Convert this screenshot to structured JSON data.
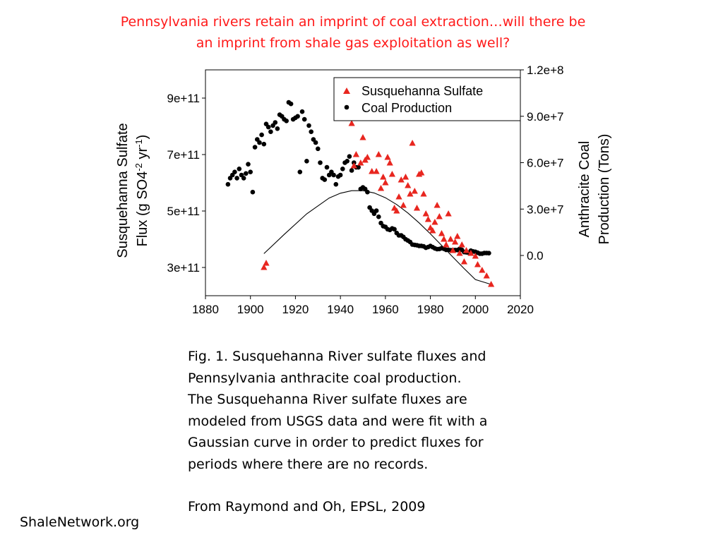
{
  "slide": {
    "title_line1": "Pennsylvania rivers retain an imprint of coal extraction…will there be",
    "title_line2": "an imprint from shale gas exploitation as well?",
    "caption": [
      "Fig. 1. Susquehanna River sulfate fluxes and",
      "Pennsylvania anthracite coal production.",
      "The Susquehanna River sulfate fluxes are",
      "modeled from USGS data and were fit with a",
      "Gaussian curve in order to predict fluxes for",
      "periods where there are no records."
    ],
    "source": "From Raymond and Oh, EPSL, 2009",
    "footer": "ShaleNetwork.org"
  },
  "chart_data": {
    "type": "scatter",
    "xlim": [
      1880,
      2020
    ],
    "x_ticks": [
      "1880",
      "1900",
      "1920",
      "1940",
      "1960",
      "1980",
      "2000",
      "2020"
    ],
    "ylabel_left": "Susquehanna Sulfate Flux (g SO4-2 yr-1)",
    "ylim_left": [
      200000000000.0,
      1000000000000.0
    ],
    "y_ticks_left": [
      "3e+11",
      "5e+11",
      "7e+11",
      "9e+11"
    ],
    "ylabel_right": "Anthracite Coal Production (Tons)",
    "ylim_right": [
      -26000000.0,
      120000000.0
    ],
    "y_ticks_right": [
      "0.0",
      "3.0e+7",
      "6.0e+7",
      "9.0e+7",
      "1.2e+8"
    ],
    "legend_position": "top-right",
    "colors": {
      "sulfate": "#e8261f",
      "coal": "#000000",
      "fit": "#000000"
    },
    "series": [
      {
        "name": "Susquehanna Sulfate",
        "marker": "triangle",
        "axis": "left",
        "points": [
          [
            1906,
            300000000000.0
          ],
          [
            1907,
            315000000000.0
          ],
          [
            1945,
            810000000000.0
          ],
          [
            1946,
            660000000000.0
          ],
          [
            1947,
            700000000000.0
          ],
          [
            1949,
            670000000000.0
          ],
          [
            1950,
            760000000000.0
          ],
          [
            1951,
            680000000000.0
          ],
          [
            1952,
            690000000000.0
          ],
          [
            1954,
            640000000000.0
          ],
          [
            1956,
            640000000000.0
          ],
          [
            1957,
            700000000000.0
          ],
          [
            1958,
            580000000000.0
          ],
          [
            1959,
            620000000000.0
          ],
          [
            1960,
            600000000000.0
          ],
          [
            1961,
            690000000000.0
          ],
          [
            1962,
            670000000000.0
          ],
          [
            1963,
            630000000000.0
          ],
          [
            1964,
            510000000000.0
          ],
          [
            1965,
            500000000000.0
          ],
          [
            1966,
            550000000000.0
          ],
          [
            1967,
            610000000000.0
          ],
          [
            1968,
            520000000000.0
          ],
          [
            1969,
            620000000000.0
          ],
          [
            1970,
            590000000000.0
          ],
          [
            1971,
            560000000000.0
          ],
          [
            1972,
            740000000000.0
          ],
          [
            1973,
            570000000000.0
          ],
          [
            1974,
            510000000000.0
          ],
          [
            1975,
            630000000000.0
          ],
          [
            1976,
            635000000000.0
          ],
          [
            1977,
            560000000000.0
          ],
          [
            1978,
            490000000000.0
          ],
          [
            1979,
            470000000000.0
          ],
          [
            1980,
            440000000000.0
          ],
          [
            1981,
            430000000000.0
          ],
          [
            1982,
            460000000000.0
          ],
          [
            1983,
            520000000000.0
          ],
          [
            1984,
            480000000000.0
          ],
          [
            1985,
            420000000000.0
          ],
          [
            1986,
            400000000000.0
          ],
          [
            1987,
            380000000000.0
          ],
          [
            1988,
            490000000000.0
          ],
          [
            1989,
            400000000000.0
          ],
          [
            1990,
            360000000000.0
          ],
          [
            1991,
            390000000000.0
          ],
          [
            1992,
            410000000000.0
          ],
          [
            1993,
            350000000000.0
          ],
          [
            1994,
            380000000000.0
          ],
          [
            1995,
            320000000000.0
          ],
          [
            1996,
            360000000000.0
          ],
          [
            1998,
            350000000000.0
          ],
          [
            2000,
            340000000000.0
          ],
          [
            2001,
            310000000000.0
          ],
          [
            2003,
            290000000000.0
          ],
          [
            2005,
            270000000000.0
          ],
          [
            2007,
            240000000000.0
          ]
        ]
      },
      {
        "name": "Coal Production",
        "marker": "circle",
        "axis": "right",
        "points": [
          [
            1890,
            46000000.0
          ],
          [
            1891,
            50000000.0
          ],
          [
            1892,
            52000000.0
          ],
          [
            1893,
            54000000.0
          ],
          [
            1894,
            50000000.0
          ],
          [
            1895,
            56000000.0
          ],
          [
            1896,
            52000000.0
          ],
          [
            1897,
            50000000.0
          ],
          [
            1898,
            53000000.0
          ],
          [
            1899,
            59000000.0
          ],
          [
            1900,
            54000000.0
          ],
          [
            1901,
            41000000.0
          ],
          [
            1902,
            70000000.0
          ],
          [
            1903,
            75000000.0
          ],
          [
            1904,
            73000000.0
          ],
          [
            1905,
            78000000.0
          ],
          [
            1906,
            72000000.0
          ],
          [
            1907,
            85000000.0
          ],
          [
            1908,
            83000000.0
          ],
          [
            1909,
            80000000.0
          ],
          [
            1910,
            84000000.0
          ],
          [
            1911,
            86000000.0
          ],
          [
            1912,
            82000000.0
          ],
          [
            1913,
            91000000.0
          ],
          [
            1914,
            90000000.0
          ],
          [
            1915,
            88000000.0
          ],
          [
            1916,
            87000000.0
          ],
          [
            1917,
            99000000.0
          ],
          [
            1918,
            98000000.0
          ],
          [
            1919,
            88000000.0
          ],
          [
            1920,
            89000000.0
          ],
          [
            1921,
            90000000.0
          ],
          [
            1922,
            54000000.0
          ],
          [
            1923,
            93000000.0
          ],
          [
            1924,
            88000000.0
          ],
          [
            1925,
            61000000.0
          ],
          [
            1926,
            84000000.0
          ],
          [
            1927,
            80000000.0
          ],
          [
            1928,
            75000000.0
          ],
          [
            1929,
            73000000.0
          ],
          [
            1930,
            69000000.0
          ],
          [
            1931,
            60000000.0
          ],
          [
            1932,
            50000000.0
          ],
          [
            1933,
            49000000.0
          ],
          [
            1934,
            57000000.0
          ],
          [
            1935,
            52000000.0
          ],
          [
            1936,
            54000000.0
          ],
          [
            1937,
            52000000.0
          ],
          [
            1938,
            46000000.0
          ],
          [
            1939,
            51000000.0
          ],
          [
            1940,
            52000000.0
          ],
          [
            1941,
            56000000.0
          ],
          [
            1942,
            60000000.0
          ],
          [
            1943,
            61000000.0
          ],
          [
            1944,
            64000000.0
          ],
          [
            1945,
            55000000.0
          ],
          [
            1946,
            60000000.0
          ],
          [
            1947,
            57000000.0
          ],
          [
            1948,
            57000000.0
          ],
          [
            1949,
            43000000.0
          ],
          [
            1950,
            44000000.0
          ],
          [
            1951,
            43000000.0
          ],
          [
            1952,
            41000000.0
          ],
          [
            1953,
            31000000.0
          ],
          [
            1954,
            29000000.0
          ],
          [
            1955,
            27000000.0
          ],
          [
            1956,
            29000000.0
          ],
          [
            1957,
            25000000.0
          ],
          [
            1958,
            21000000.0
          ],
          [
            1959,
            19000000.0
          ],
          [
            1960,
            18500000.0
          ],
          [
            1961,
            17000000.0
          ],
          [
            1962,
            16500000.0
          ],
          [
            1963,
            17500000.0
          ],
          [
            1964,
            17000000.0
          ],
          [
            1965,
            14500000.0
          ],
          [
            1966,
            13000000.0
          ],
          [
            1967,
            13000000.0
          ],
          [
            1968,
            12000000.0
          ],
          [
            1969,
            10500000.0
          ],
          [
            1970,
            9700000.0
          ],
          [
            1971,
            8700000.0
          ],
          [
            1972,
            7100000.0
          ],
          [
            1973,
            6800000.0
          ],
          [
            1974,
            6600000.0
          ],
          [
            1975,
            6200000.0
          ],
          [
            1976,
            6200000.0
          ],
          [
            1977,
            5900000.0
          ],
          [
            1978,
            5000000.0
          ],
          [
            1979,
            5500000.0
          ],
          [
            1980,
            6100000.0
          ],
          [
            1981,
            5400000.0
          ],
          [
            1982,
            4600000.0
          ],
          [
            1983,
            4100000.0
          ],
          [
            1984,
            4200000.0
          ],
          [
            1985,
            4700000.0
          ],
          [
            1986,
            4300000.0
          ],
          [
            1987,
            3600000.0
          ],
          [
            1988,
            3600000.0
          ],
          [
            1989,
            3400000.0
          ],
          [
            1990,
            3400000.0
          ],
          [
            1991,
            3500000.0
          ],
          [
            1992,
            3500000.0
          ],
          [
            1993,
            4300000.0
          ],
          [
            1994,
            3600000.0
          ],
          [
            1995,
            2200000.0
          ],
          [
            1996,
            2000000.0
          ],
          [
            1997,
            1800000.0
          ],
          [
            1998,
            3100000.0
          ],
          [
            1999,
            2600000.0
          ],
          [
            2000,
            2400000.0
          ],
          [
            2001,
            1800000.0
          ],
          [
            2002,
            1200000.0
          ],
          [
            2003,
            1200000.0
          ],
          [
            2004,
            1600000.0
          ],
          [
            2005,
            1600000.0
          ],
          [
            2006,
            1500000.0
          ]
        ]
      },
      {
        "marker": "line",
        "axis": "left",
        "points": [
          [
            1906,
            349000000000.0
          ],
          [
            1915,
            417000000000.0
          ],
          [
            1925,
            490000000000.0
          ],
          [
            1935,
            546000000000.0
          ],
          [
            1940,
            563000000000.0
          ],
          [
            1945,
            572000000000.0
          ],
          [
            1950,
            572000000000.0
          ],
          [
            1955,
            564000000000.0
          ],
          [
            1960,
            547000000000.0
          ],
          [
            1965,
            523000000000.0
          ],
          [
            1970,
            493000000000.0
          ],
          [
            1975,
            458000000000.0
          ],
          [
            1980,
            419000000000.0
          ],
          [
            1985,
            378000000000.0
          ],
          [
            1990,
            337000000000.0
          ],
          [
            1995,
            296000000000.0
          ],
          [
            2000,
            257000000000.0
          ],
          [
            2007,
            240000000000.0
          ]
        ]
      }
    ]
  }
}
